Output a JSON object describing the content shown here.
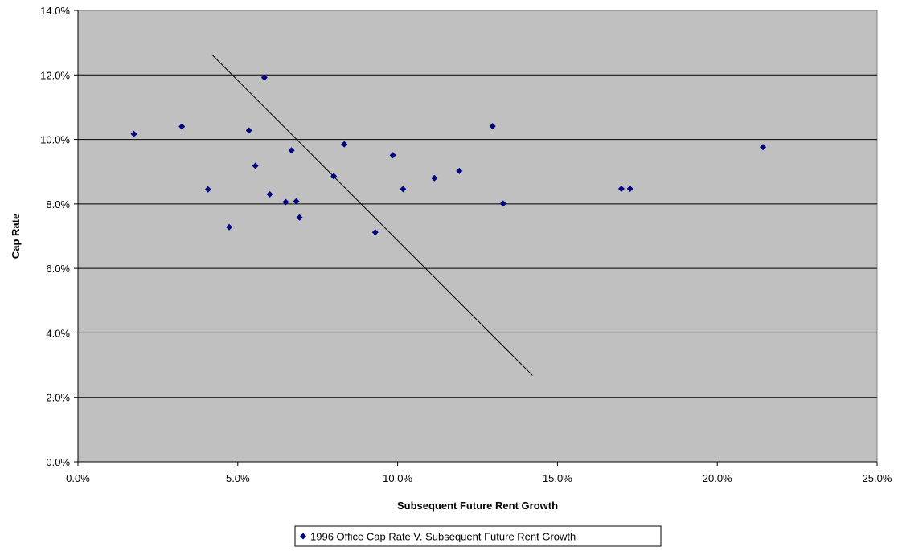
{
  "chart_data": {
    "type": "scatter",
    "xlabel": "Subsequent Future Rent Growth",
    "ylabel": "Cap Rate",
    "xlim": [
      0,
      0.25
    ],
    "ylim": [
      0,
      0.14
    ],
    "x_ticks": [
      "0.0%",
      "5.0%",
      "10.0%",
      "15.0%",
      "20.0%",
      "25.0%"
    ],
    "y_ticks": [
      "0.0%",
      "2.0%",
      "4.0%",
      "6.0%",
      "8.0%",
      "10.0%",
      "12.0%",
      "14.0%"
    ],
    "grid": "horizontal",
    "plot_background": "#c0c0c0",
    "legend": {
      "position": "bottom"
    },
    "series": [
      {
        "name": "1996 Office Cap Rate V. Subsequent Future Rent Growth",
        "marker": "diamond",
        "color": "#000080",
        "points": [
          {
            "x": 0.0175,
            "y": 0.1017
          },
          {
            "x": 0.0325,
            "y": 0.104
          },
          {
            "x": 0.0407,
            "y": 0.0845
          },
          {
            "x": 0.0473,
            "y": 0.0728
          },
          {
            "x": 0.0535,
            "y": 0.1028
          },
          {
            "x": 0.0555,
            "y": 0.0918
          },
          {
            "x": 0.0583,
            "y": 0.1192
          },
          {
            "x": 0.06,
            "y": 0.083
          },
          {
            "x": 0.065,
            "y": 0.0806
          },
          {
            "x": 0.0668,
            "y": 0.0966
          },
          {
            "x": 0.0683,
            "y": 0.0808
          },
          {
            "x": 0.0693,
            "y": 0.0758
          },
          {
            "x": 0.08,
            "y": 0.0886
          },
          {
            "x": 0.0833,
            "y": 0.0985
          },
          {
            "x": 0.093,
            "y": 0.0712
          },
          {
            "x": 0.0985,
            "y": 0.0951
          },
          {
            "x": 0.1017,
            "y": 0.0846
          },
          {
            "x": 0.1115,
            "y": 0.088
          },
          {
            "x": 0.1193,
            "y": 0.0902
          },
          {
            "x": 0.1297,
            "y": 0.1041
          },
          {
            "x": 0.133,
            "y": 0.0801
          },
          {
            "x": 0.17,
            "y": 0.0847
          },
          {
            "x": 0.1727,
            "y": 0.0847
          },
          {
            "x": 0.2143,
            "y": 0.0976
          }
        ]
      }
    ],
    "trendline": {
      "x1": 0.042,
      "y1": 0.1262,
      "x2": 0.1422,
      "y2": 0.0268,
      "color": "#000000"
    }
  }
}
